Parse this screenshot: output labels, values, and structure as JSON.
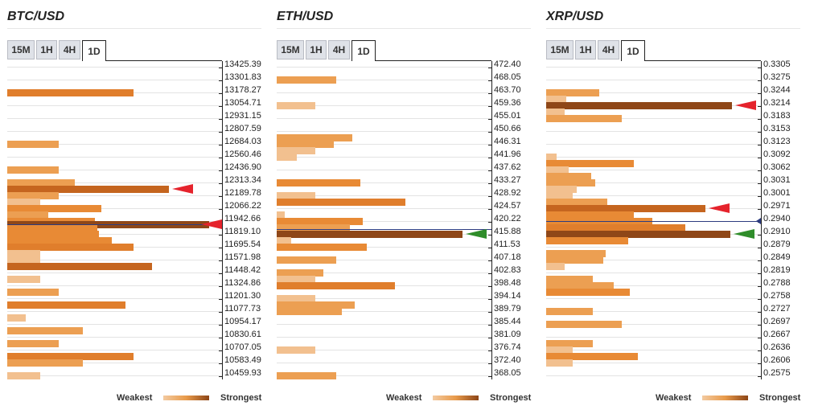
{
  "tabs": [
    "15M",
    "1H",
    "4H",
    "1D"
  ],
  "active_tab": "1D",
  "legend": {
    "weakest": "Weakest",
    "strongest": "Strongest"
  },
  "chart_data": [
    {
      "type": "bar",
      "title": "BTC/USD",
      "orientation": "horizontal",
      "price_levels": [
        "13425.39",
        "13301.83",
        "13178.27",
        "13054.71",
        "12931.15",
        "12807.59",
        "12684.03",
        "12560.46",
        "12436.90",
        "12313.34",
        "12189.78",
        "12066.22",
        "11942.66",
        "11819.10",
        "11695.54",
        "11571.98",
        "11448.42",
        "11324.86",
        "11201.30",
        "11077.73",
        "10954.17",
        "10830.61",
        "10707.05",
        "10583.49",
        "10459.93"
      ],
      "bars": [
        {
          "level": 13178.27,
          "strength": 0.62
        },
        {
          "level": 12684.03,
          "strength": 0.25
        },
        {
          "level": 12436.9,
          "strength": 0.25
        },
        {
          "level": 12313.34,
          "strength": 0.33
        },
        {
          "level": 12251.56,
          "strength": 0.79
        },
        {
          "level": 12189.78,
          "strength": 0.25
        },
        {
          "level": 12127.0,
          "strength": 0.16
        },
        {
          "level": 12066.22,
          "strength": 0.46
        },
        {
          "level": 12004.44,
          "strength": 0.2
        },
        {
          "level": 11942.66,
          "strength": 0.43
        },
        {
          "level": 11910.0,
          "strength": 0.99
        },
        {
          "level": 11870.0,
          "strength": 0.44
        },
        {
          "level": 11819.1,
          "strength": 0.45
        },
        {
          "level": 11757.32,
          "strength": 0.51
        },
        {
          "level": 11695.54,
          "strength": 0.62
        },
        {
          "level": 11633.76,
          "strength": 0.16
        },
        {
          "level": 11571.98,
          "strength": 0.16
        },
        {
          "level": 11510.2,
          "strength": 0.71
        },
        {
          "level": 11386.64,
          "strength": 0.16
        },
        {
          "level": 11263.08,
          "strength": 0.25
        },
        {
          "level": 11139.52,
          "strength": 0.58
        },
        {
          "level": 11015.95,
          "strength": 0.09
        },
        {
          "level": 10892.39,
          "strength": 0.37
        },
        {
          "level": 10768.83,
          "strength": 0.25
        },
        {
          "level": 10645.27,
          "strength": 0.62
        },
        {
          "level": 10583.49,
          "strength": 0.37
        },
        {
          "level": 10459.93,
          "strength": 0.16
        }
      ],
      "current_price_level": 11910.0,
      "markers": [
        {
          "level": 12251.56,
          "color": "red"
        },
        {
          "level": 11910.0,
          "color": "red"
        }
      ]
    },
    {
      "type": "bar",
      "title": "ETH/USD",
      "orientation": "horizontal",
      "price_levels": [
        "472.40",
        "468.05",
        "463.70",
        "459.36",
        "455.01",
        "450.66",
        "446.31",
        "441.96",
        "437.62",
        "433.27",
        "428.92",
        "424.57",
        "420.22",
        "415.88",
        "411.53",
        "407.18",
        "402.83",
        "398.48",
        "394.14",
        "389.79",
        "385.44",
        "381.09",
        "376.74",
        "372.40",
        "368.05"
      ],
      "bars": [
        {
          "level": 468.05,
          "strength": 0.29
        },
        {
          "level": 459.36,
          "strength": 0.19
        },
        {
          "level": 448.5,
          "strength": 0.37
        },
        {
          "level": 446.31,
          "strength": 0.28
        },
        {
          "level": 444.14,
          "strength": 0.19
        },
        {
          "level": 441.96,
          "strength": 0.1
        },
        {
          "level": 433.27,
          "strength": 0.41
        },
        {
          "level": 428.92,
          "strength": 0.19
        },
        {
          "level": 426.75,
          "strength": 0.63
        },
        {
          "level": 422.4,
          "strength": 0.04
        },
        {
          "level": 420.22,
          "strength": 0.42
        },
        {
          "level": 418.05,
          "strength": 0.36
        },
        {
          "level": 415.88,
          "strength": 0.91
        },
        {
          "level": 413.7,
          "strength": 0.07
        },
        {
          "level": 411.53,
          "strength": 0.44
        },
        {
          "level": 407.18,
          "strength": 0.29
        },
        {
          "level": 402.83,
          "strength": 0.23
        },
        {
          "level": 400.66,
          "strength": 0.19
        },
        {
          "level": 398.48,
          "strength": 0.58
        },
        {
          "level": 394.14,
          "strength": 0.19
        },
        {
          "level": 391.96,
          "strength": 0.38
        },
        {
          "level": 389.79,
          "strength": 0.32
        },
        {
          "level": 376.74,
          "strength": 0.19
        },
        {
          "level": 368.05,
          "strength": 0.29
        }
      ],
      "current_price_level": 417.5,
      "markers": [
        {
          "level": 415.88,
          "color": "green"
        }
      ]
    },
    {
      "type": "bar",
      "title": "XRP/USD",
      "orientation": "horizontal",
      "price_levels": [
        "0.3305",
        "0.3275",
        "0.3244",
        "0.3214",
        "0.3183",
        "0.3153",
        "0.3123",
        "0.3092",
        "0.3062",
        "0.3031",
        "0.3001",
        "0.2971",
        "0.2940",
        "0.2910",
        "0.2879",
        "0.2849",
        "0.2819",
        "0.2788",
        "0.2758",
        "0.2727",
        "0.2697",
        "0.2667",
        "0.2636",
        "0.2606",
        "0.2575"
      ],
      "bars": [
        {
          "level": 0.3244,
          "strength": 0.26
        },
        {
          "level": 0.3229,
          "strength": 0.1
        },
        {
          "level": 0.3214,
          "strength": 0.91
        },
        {
          "level": 0.3199,
          "strength": 0.09
        },
        {
          "level": 0.3183,
          "strength": 0.37
        },
        {
          "level": 0.3092,
          "strength": 0.05
        },
        {
          "level": 0.3077,
          "strength": 0.43
        },
        {
          "level": 0.3062,
          "strength": 0.11
        },
        {
          "level": 0.3046,
          "strength": 0.22
        },
        {
          "level": 0.3031,
          "strength": 0.24
        },
        {
          "level": 0.3016,
          "strength": 0.15
        },
        {
          "level": 0.3001,
          "strength": 0.13
        },
        {
          "level": 0.2986,
          "strength": 0.3
        },
        {
          "level": 0.2971,
          "strength": 0.78
        },
        {
          "level": 0.2955,
          "strength": 0.43
        },
        {
          "level": 0.294,
          "strength": 0.52
        },
        {
          "level": 0.2925,
          "strength": 0.68
        },
        {
          "level": 0.291,
          "strength": 0.9
        },
        {
          "level": 0.2894,
          "strength": 0.4
        },
        {
          "level": 0.2864,
          "strength": 0.29
        },
        {
          "level": 0.2849,
          "strength": 0.28
        },
        {
          "level": 0.2834,
          "strength": 0.09
        },
        {
          "level": 0.2803,
          "strength": 0.23
        },
        {
          "level": 0.2788,
          "strength": 0.33
        },
        {
          "level": 0.2773,
          "strength": 0.41
        },
        {
          "level": 0.2727,
          "strength": 0.23
        },
        {
          "level": 0.2697,
          "strength": 0.37
        },
        {
          "level": 0.2651,
          "strength": 0.23
        },
        {
          "level": 0.2636,
          "strength": 0.13
        },
        {
          "level": 0.2621,
          "strength": 0.45
        },
        {
          "level": 0.2606,
          "strength": 0.13
        }
      ],
      "current_price_level": 0.294,
      "markers": [
        {
          "level": 0.3214,
          "color": "red"
        },
        {
          "level": 0.2971,
          "color": "red"
        },
        {
          "level": 0.294,
          "color": "navy"
        },
        {
          "level": 0.291,
          "color": "green"
        }
      ]
    }
  ]
}
